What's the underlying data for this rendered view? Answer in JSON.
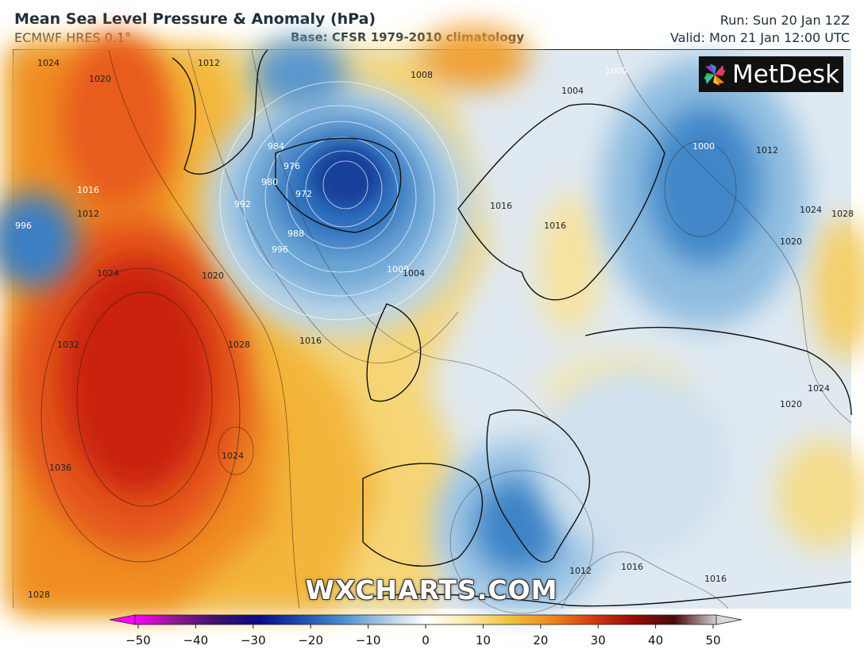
{
  "header": {
    "title": "Mean Sea Level Pressure & Anomaly (hPa)",
    "model": "ECMWF HRES 0.1°",
    "base": "Base: CFSR 1979-2010 climatology",
    "run": "Run: Sun 20 Jan 12Z",
    "valid": "Valid: Mon 21 Jan 12:00 UTC"
  },
  "logo": {
    "text": "MetDesk",
    "icon": "pinwheel-logo-icon"
  },
  "watermark": "WXCHARTS.COM",
  "colorbar": {
    "ticks": [
      "−50",
      "−40",
      "−30",
      "−20",
      "−10",
      "0",
      "10",
      "20",
      "30",
      "40",
      "50"
    ],
    "colors": [
      "#ff00ff",
      "#8a1a8f",
      "#3a1070",
      "#0a0a8a",
      "#1a4fb4",
      "#4a8ecf",
      "#a9c8e4",
      "#ffffff",
      "#fbeaa6",
      "#f3c23c",
      "#f08a1c",
      "#d73a0f",
      "#9a0a05",
      "#4a0a0a",
      "#cfcfcf"
    ]
  },
  "isobars": {
    "labels": [
      "1024",
      "1020",
      "1016",
      "1012",
      "1008",
      "1004",
      "1000",
      "996",
      "992",
      "988",
      "984",
      "980",
      "976",
      "972",
      "1028",
      "1032",
      "1036"
    ],
    "placed": [
      {
        "text": "1024"
      },
      {
        "text": "1020"
      },
      {
        "text": "1012"
      },
      {
        "text": "1008"
      },
      {
        "text": "1004"
      },
      {
        "text": "1000"
      },
      {
        "text": "984"
      },
      {
        "text": "976"
      },
      {
        "text": "972"
      },
      {
        "text": "980"
      },
      {
        "text": "992"
      },
      {
        "text": "988"
      },
      {
        "text": "996"
      },
      {
        "text": "1000"
      },
      {
        "text": "1004"
      },
      {
        "text": "1016"
      },
      {
        "text": "1012"
      },
      {
        "text": "1024"
      },
      {
        "text": "1020"
      },
      {
        "text": "1032"
      },
      {
        "text": "1028"
      },
      {
        "text": "1036"
      },
      {
        "text": "1024"
      },
      {
        "text": "1028"
      },
      {
        "text": "1016"
      },
      {
        "text": "1016"
      },
      {
        "text": "1016"
      },
      {
        "text": "1000"
      },
      {
        "text": "1012"
      },
      {
        "text": "1024"
      },
      {
        "text": "1020"
      },
      {
        "text": "1020"
      },
      {
        "text": "1024"
      },
      {
        "text": "1012"
      },
      {
        "text": "1016"
      },
      {
        "text": "1016"
      },
      {
        "text": "996"
      },
      {
        "text": "1028"
      }
    ]
  }
}
